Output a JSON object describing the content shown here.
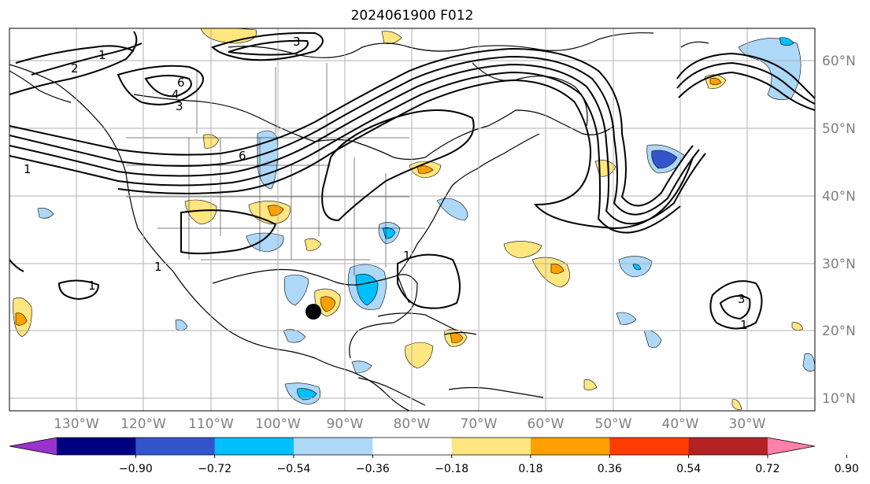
{
  "title": "2024061900 F012",
  "lat_labels": [
    "60°N",
    "50°N",
    "40°N",
    "30°N",
    "20°N",
    "10°N"
  ],
  "lon_labels": [
    "130°W",
    "120°W",
    "110°W",
    "100°W",
    "90°W",
    "80°W",
    "70°W",
    "60°W",
    "50°W",
    "40°W",
    "30°W"
  ],
  "colorbar": {
    "tick_labels": [
      "−0.90",
      "−0.72",
      "−0.54",
      "−0.36",
      "−0.18",
      "0.18",
      "0.36",
      "0.54",
      "0.72",
      "0.90"
    ],
    "colors": [
      "#9933cc",
      "#000080",
      "#3355cc",
      "#00bfff",
      "#add8f7",
      "#ffffff",
      "#ffe680",
      "#ffa000",
      "#ff3d00",
      "#b22222",
      "#ff80aa"
    ]
  },
  "contour_labels": [
    "1",
    "2",
    "6",
    "4",
    "3",
    "3",
    "6",
    "1",
    "1",
    "1",
    "1",
    "1",
    "3"
  ],
  "colors": {
    "contour": "#000000",
    "coast": "#000000",
    "grid": "#b0b0b0",
    "axis_text": "#808080"
  }
}
